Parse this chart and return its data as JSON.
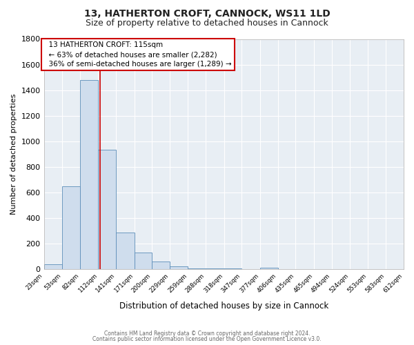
{
  "title_line1": "13, HATHERTON CROFT, CANNOCK, WS11 1LD",
  "title_line2": "Size of property relative to detached houses in Cannock",
  "xlabel": "Distribution of detached houses by size in Cannock",
  "ylabel": "Number of detached properties",
  "bar_edges": [
    23,
    53,
    82,
    112,
    141,
    171,
    200,
    229,
    259,
    288,
    318,
    347,
    377,
    406,
    435,
    465,
    494,
    524,
    553,
    583,
    612
  ],
  "bar_heights": [
    38,
    650,
    1480,
    935,
    285,
    130,
    62,
    22,
    8,
    3,
    3,
    2,
    13,
    0,
    0,
    0,
    0,
    0,
    0,
    0
  ],
  "bar_color": "#cfdded",
  "bar_edge_color": "#5b8db8",
  "annotation_line1": "13 HATHERTON CROFT: 115sqm",
  "annotation_line2": "← 63% of detached houses are smaller (2,282)",
  "annotation_line3": "36% of semi-detached houses are larger (1,289) →",
  "property_size": 115,
  "ylim": [
    0,
    1800
  ],
  "yticks": [
    0,
    200,
    400,
    600,
    800,
    1000,
    1200,
    1400,
    1600,
    1800
  ],
  "tick_labels": [
    "23sqm",
    "53sqm",
    "82sqm",
    "112sqm",
    "141sqm",
    "171sqm",
    "200sqm",
    "229sqm",
    "259sqm",
    "288sqm",
    "318sqm",
    "347sqm",
    "377sqm",
    "406sqm",
    "435sqm",
    "465sqm",
    "494sqm",
    "524sqm",
    "553sqm",
    "583sqm",
    "612sqm"
  ],
  "footer_line1": "Contains HM Land Registry data © Crown copyright and database right 2024.",
  "footer_line2": "Contains public sector information licensed under the Open Government Licence v3.0.",
  "background_color": "#ffffff",
  "plot_bg_color": "#e8eef4",
  "grid_color": "#ffffff",
  "annotation_box_color": "#ffffff",
  "annotation_box_edge": "#cc0000",
  "vline_color": "#cc0000",
  "title1_fontsize": 10,
  "title2_fontsize": 9
}
